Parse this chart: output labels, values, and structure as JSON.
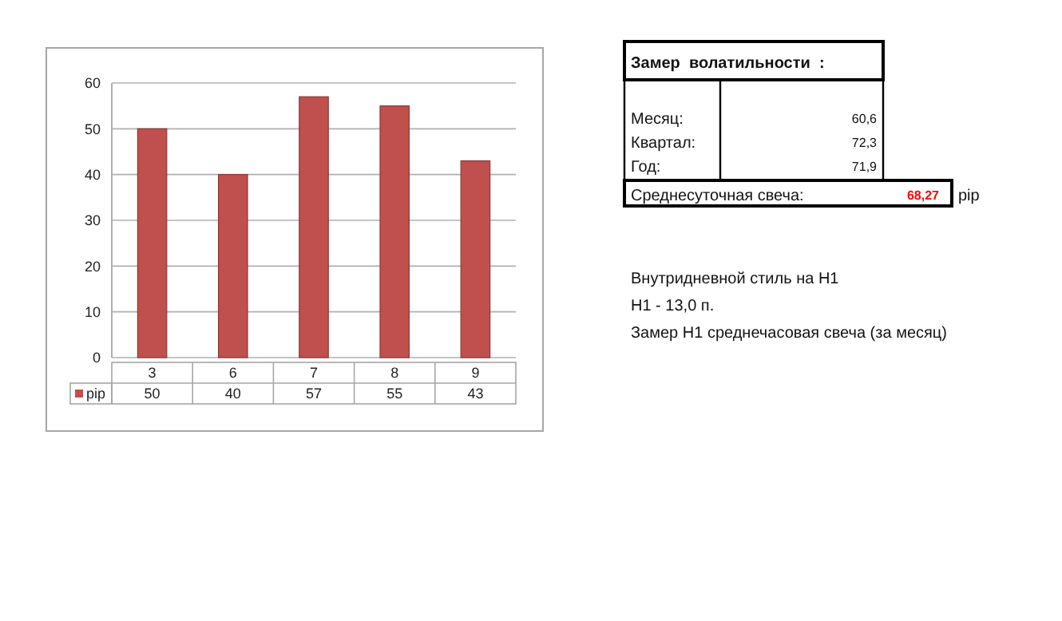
{
  "chart_data": {
    "type": "bar",
    "categories": [
      "3",
      "6",
      "7",
      "8",
      "9"
    ],
    "series": [
      {
        "name": "pip",
        "color": "#c0504d",
        "values": [
          50,
          40,
          57,
          55,
          43
        ]
      }
    ],
    "ylim": [
      0,
      60
    ],
    "yticks": [
      0,
      10,
      20,
      30,
      40,
      50,
      60
    ],
    "grid": "y",
    "legend": "bottom",
    "data_labels": true,
    "annotations": [
      "Замер  волатильности  :",
      "Месяц:",
      "60,6",
      "Квартал:",
      "72,3",
      "Год:",
      "71,9",
      "Среднесуточная свеча:",
      "68,27",
      "pip",
      "Внутридневной стиль на H1",
      "H1 - 13,0 п.",
      "Замер H1 среднечасовая свеча (за месяц)"
    ]
  }
}
